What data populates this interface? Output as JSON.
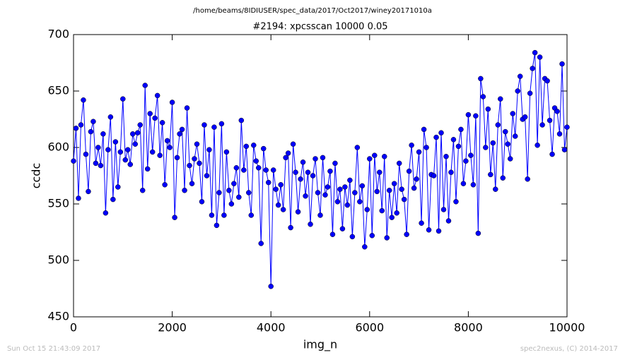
{
  "chart_data": {
    "type": "line",
    "suptitle": "/home/beams/8IDIUSER/spec_data/2017/Oct2017/winey20171010a",
    "title": "#2194: xpcsscan 10000 0.05",
    "xlabel": "img_n",
    "ylabel": "ccdc",
    "footer_left": "Sun Oct 15 21:43:09 2017",
    "footer_right": "spec2nexus, (C) 2014-2017",
    "xlim": [
      0,
      10000
    ],
    "xticks": [
      0,
      2000,
      4000,
      6000,
      8000,
      10000
    ],
    "ylim": [
      450,
      700
    ],
    "yticks": [
      450,
      500,
      550,
      600,
      650,
      700
    ],
    "grid": false,
    "series": [
      {
        "color": "#0000ff",
        "x": [
          0,
          50,
          100,
          150,
          200,
          250,
          300,
          350,
          400,
          450,
          500,
          550,
          600,
          650,
          700,
          750,
          800,
          850,
          900,
          950,
          1000,
          1050,
          1100,
          1150,
          1200,
          1250,
          1300,
          1350,
          1400,
          1450,
          1500,
          1550,
          1600,
          1650,
          1700,
          1750,
          1800,
          1850,
          1900,
          1950,
          2000,
          2050,
          2100,
          2150,
          2200,
          2250,
          2300,
          2350,
          2400,
          2450,
          2500,
          2550,
          2600,
          2650,
          2700,
          2750,
          2800,
          2850,
          2900,
          2950,
          3000,
          3050,
          3100,
          3150,
          3200,
          3250,
          3300,
          3350,
          3400,
          3450,
          3500,
          3550,
          3600,
          3650,
          3700,
          3750,
          3800,
          3850,
          3900,
          3950,
          4000,
          4050,
          4100,
          4150,
          4200,
          4250,
          4300,
          4350,
          4400,
          4450,
          4500,
          4550,
          4600,
          4650,
          4700,
          4750,
          4800,
          4850,
          4900,
          4950,
          5000,
          5050,
          5100,
          5150,
          5200,
          5250,
          5300,
          5350,
          5400,
          5450,
          5500,
          5550,
          5600,
          5650,
          5700,
          5750,
          5800,
          5850,
          5900,
          5950,
          6000,
          6050,
          6100,
          6150,
          6200,
          6250,
          6300,
          6350,
          6400,
          6450,
          6500,
          6550,
          6600,
          6650,
          6700,
          6750,
          6800,
          6850,
          6900,
          6950,
          7000,
          7050,
          7100,
          7150,
          7200,
          7250,
          7300,
          7350,
          7400,
          7450,
          7500,
          7550,
          7600,
          7650,
          7700,
          7750,
          7800,
          7850,
          7900,
          7950,
          8000,
          8050,
          8100,
          8150,
          8200,
          8250,
          8300,
          8350,
          8400,
          8450,
          8500,
          8550,
          8600,
          8650,
          8700,
          8750,
          8800,
          8850,
          8900,
          8950,
          9000,
          9050,
          9100,
          9150,
          9200,
          9250,
          9300,
          9350,
          9400,
          9450,
          9500,
          9550,
          9600,
          9650,
          9700,
          9750,
          9800,
          9850,
          9900,
          9950,
          10000
        ],
        "values": [
          588,
          617,
          555,
          620,
          642,
          594,
          561,
          614,
          623,
          586,
          600,
          584,
          612,
          542,
          598,
          627,
          554,
          605,
          565,
          596,
          643,
          589,
          598,
          585,
          612,
          603,
          613,
          620,
          562,
          655,
          581,
          630,
          596,
          626,
          646,
          593,
          622,
          567,
          606,
          600,
          640,
          538,
          591,
          612,
          616,
          562,
          635,
          584,
          568,
          590,
          603,
          586,
          552,
          620,
          575,
          598,
          540,
          618,
          531,
          560,
          621,
          540,
          596,
          562,
          550,
          568,
          582,
          556,
          624,
          580,
          601,
          560,
          540,
          602,
          588,
          582,
          515,
          599,
          580,
          569,
          477,
          580,
          563,
          549,
          567,
          545,
          591,
          595,
          529,
          603,
          578,
          543,
          572,
          587,
          557,
          578,
          532,
          575,
          590,
          560,
          540,
          591,
          558,
          565,
          579,
          523,
          586,
          552,
          563,
          528,
          565,
          549,
          571,
          521,
          560,
          600,
          552,
          566,
          512,
          545,
          590,
          522,
          593,
          561,
          578,
          544,
          592,
          520,
          562,
          538,
          568,
          542,
          586,
          563,
          554,
          523,
          579,
          602,
          564,
          572,
          596,
          533,
          616,
          600,
          527,
          576,
          575,
          609,
          526,
          613,
          545,
          592,
          535,
          578,
          607,
          552,
          601,
          616,
          568,
          588,
          629,
          593,
          567,
          628,
          524,
          661,
          645,
          600,
          634,
          576,
          604,
          563,
          620,
          643,
          573,
          614,
          603,
          590,
          630,
          610,
          650,
          663,
          625,
          627,
          572,
          648,
          670,
          684,
          602,
          680,
          620,
          661,
          659,
          624,
          594,
          635,
          632,
          612,
          674,
          598,
          618
        ]
      }
    ]
  }
}
